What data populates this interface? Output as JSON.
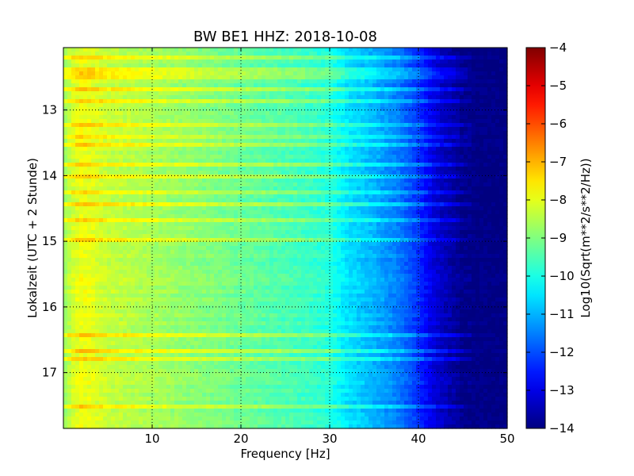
{
  "chart_data": {
    "type": "heatmap",
    "title": "BW BE1 HHZ: 2018-10-08",
    "xlabel": "Frequency [Hz]",
    "ylabel": "Lokalzeit (UTC + 2 Stunde)",
    "xlim": [
      0,
      50
    ],
    "ylim": [
      12.05,
      17.85
    ],
    "y_inverted": true,
    "x_ticks": [
      10,
      20,
      30,
      40,
      50
    ],
    "x_tick_labels": [
      "10",
      "20",
      "30",
      "40",
      "50"
    ],
    "y_ticks": [
      13,
      14,
      15,
      16,
      17
    ],
    "y_tick_labels": [
      "13",
      "14",
      "15",
      "16",
      "17"
    ],
    "grid": true,
    "colormap": "jet",
    "colorbar": {
      "label": "Log10(Sqrt(m**2/s**2/Hz))",
      "range": [
        -14,
        -4
      ],
      "ticks": [
        -4,
        -5,
        -6,
        -7,
        -8,
        -9,
        -10,
        -11,
        -12,
        -13,
        -14
      ],
      "tick_labels": [
        "−4",
        "−5",
        "−6",
        "−7",
        "−8",
        "−9",
        "−10",
        "−11",
        "−12",
        "−13",
        "−14"
      ]
    },
    "spectrum_profile": {
      "frequency": [
        0,
        1,
        2,
        3,
        5,
        10,
        15,
        20,
        25,
        28,
        30,
        32,
        35,
        38,
        40,
        42,
        45,
        50
      ],
      "value": [
        -8.8,
        -8.2,
        -7.9,
        -8.0,
        -8.3,
        -8.6,
        -8.9,
        -9.2,
        -9.5,
        -9.7,
        -9.9,
        -10.5,
        -11.0,
        -11.6,
        -12.3,
        -13.2,
        -13.9,
        -14.0
      ]
    },
    "bright_lines_local_time": [
      12.2,
      12.37,
      12.47,
      12.66,
      12.86,
      13.23,
      13.4,
      13.52,
      13.84,
      14.0,
      14.28,
      14.44,
      14.7,
      14.98,
      16.45,
      16.68,
      16.78,
      17.52
    ]
  }
}
